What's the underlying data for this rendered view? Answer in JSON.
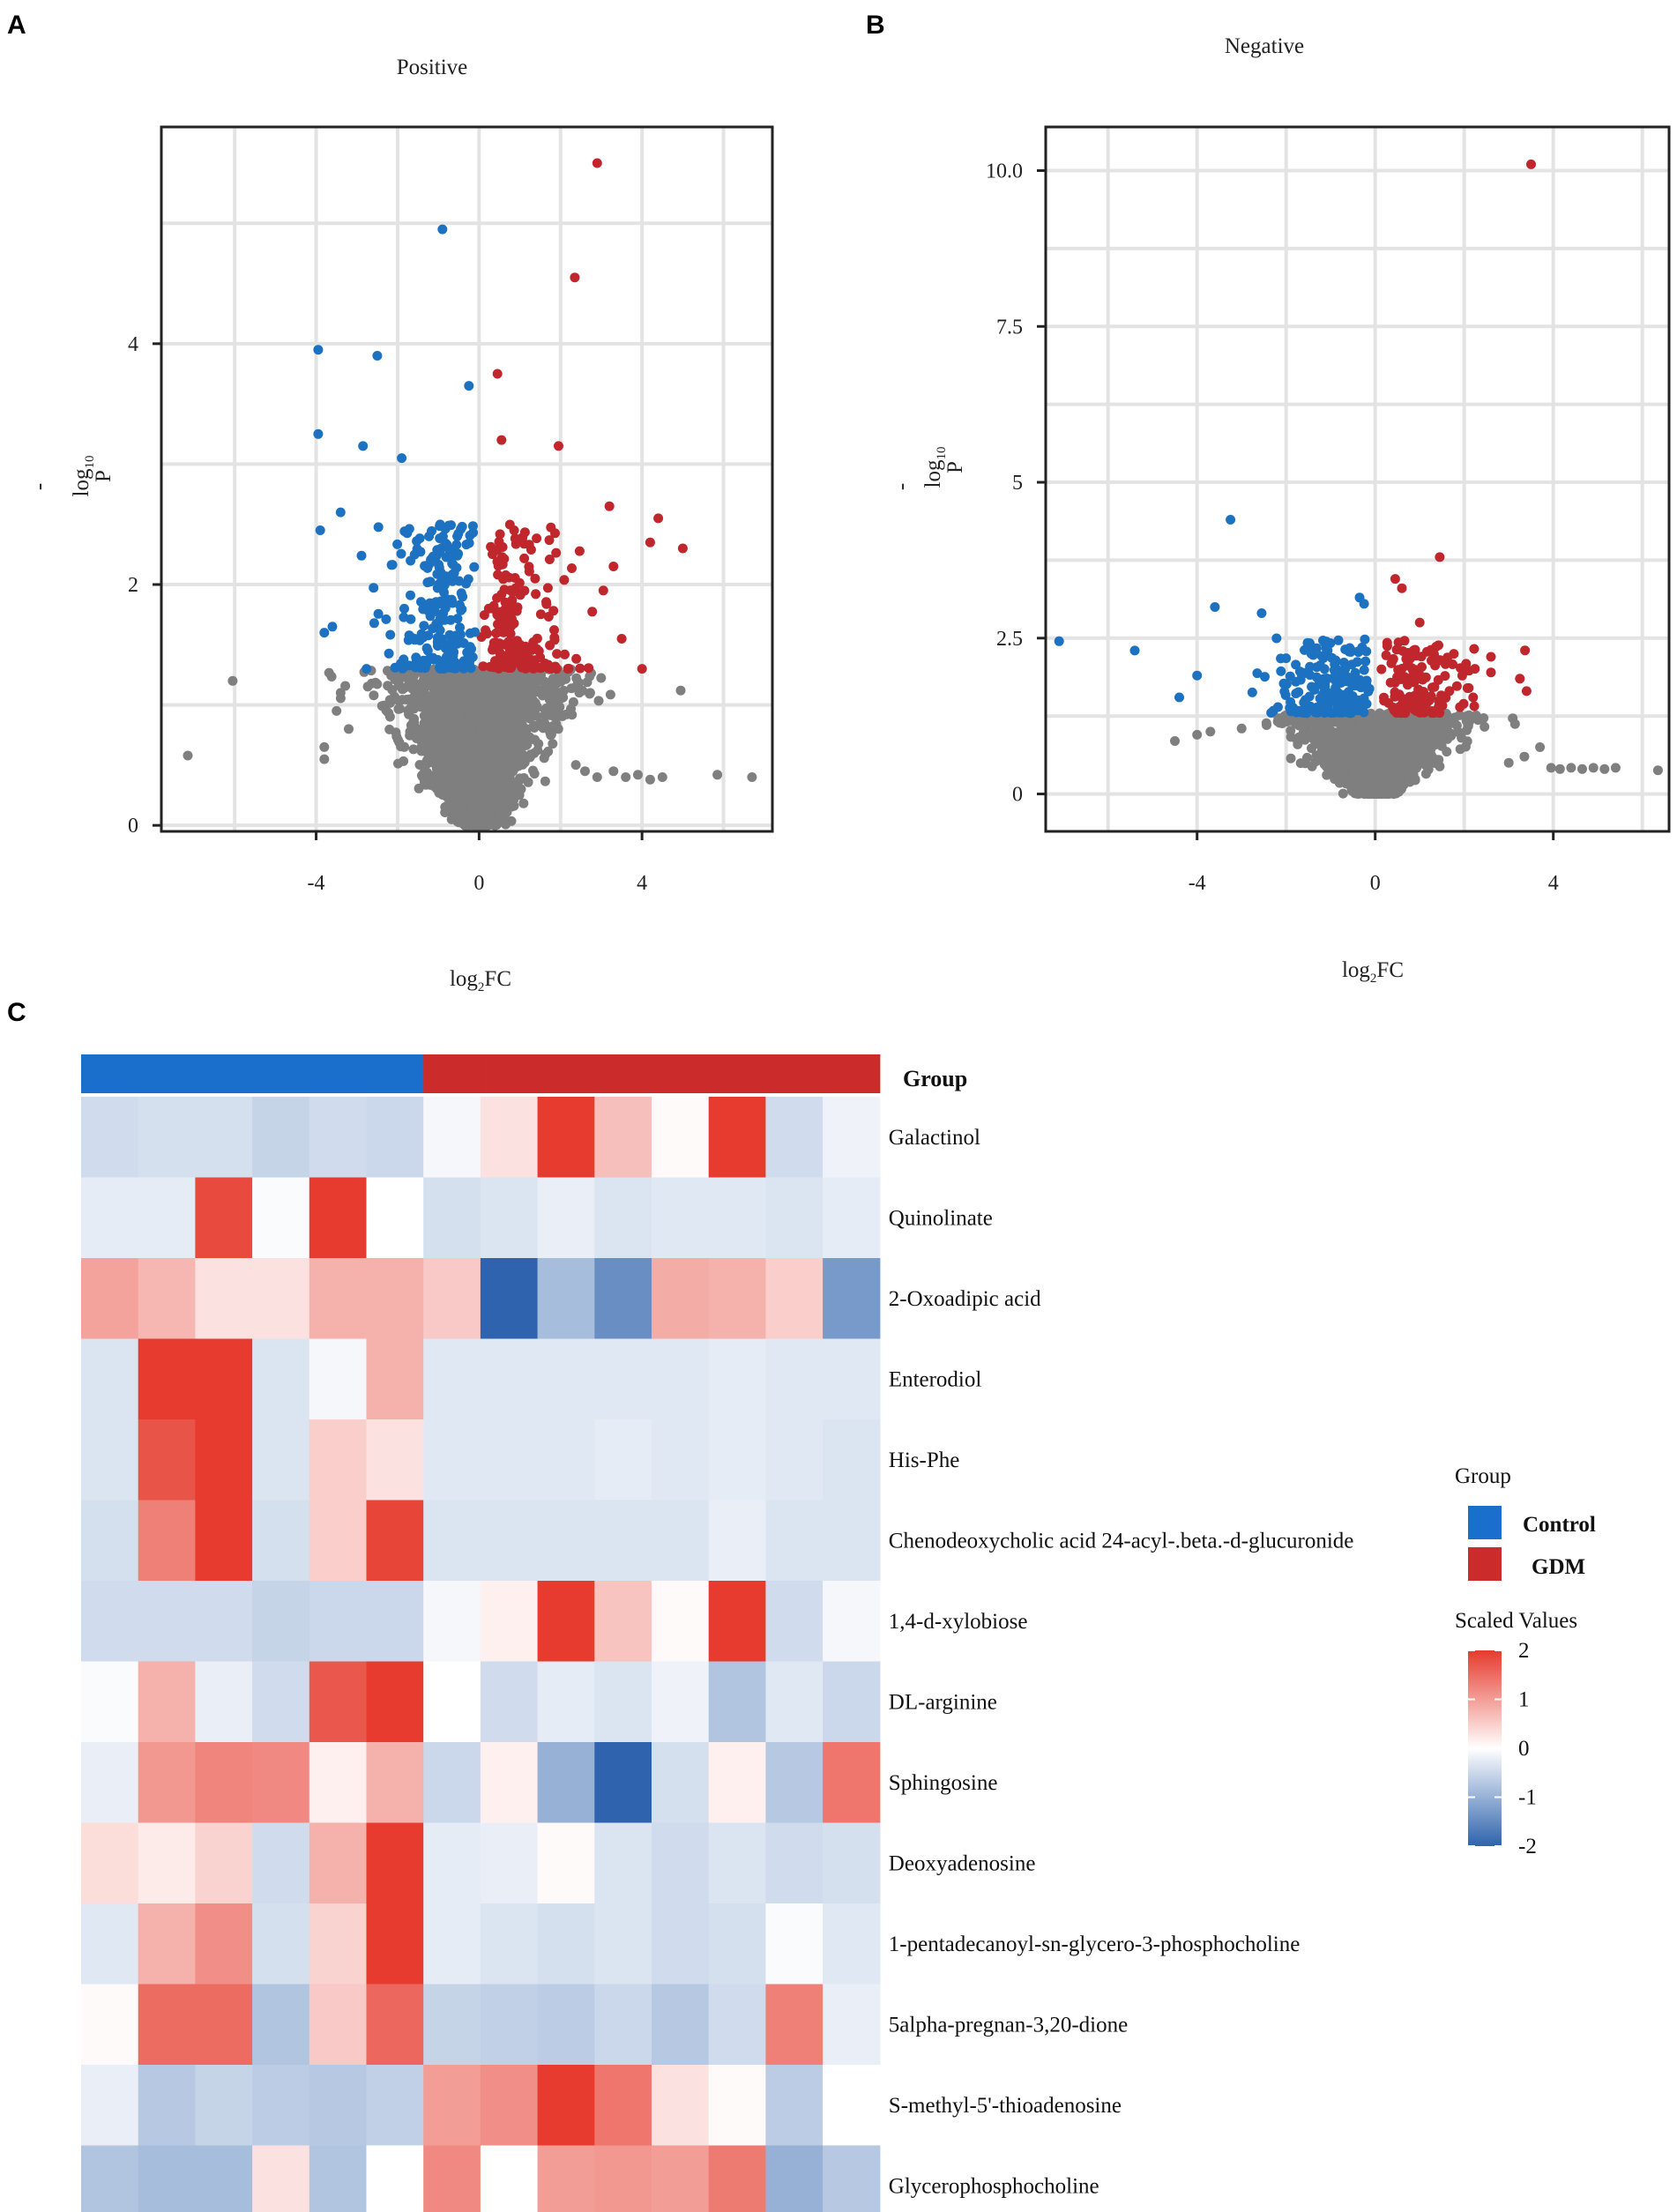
{
  "panels": {
    "a": {
      "letter": "A"
    },
    "b": {
      "letter": "B"
    },
    "c": {
      "letter": "C"
    }
  },
  "colors": {
    "up": "#c0272d",
    "down": "#1c72c0",
    "ns": "#7f7f7f",
    "control": "#1b6fcc",
    "gdm": "#cb2b2b",
    "grid": "#e3e3e3",
    "frame": "#222222"
  },
  "chart_data": [
    {
      "type": "scatter",
      "id": "volcano_positive",
      "title": "Positive",
      "xlabel": {
        "prefix": "log",
        "sub": "2",
        "suffix": "FC"
      },
      "ylabel": {
        "prefix": "-",
        "main": "log",
        "sub": "10",
        "suffix": "P"
      },
      "xlim": [
        -7.8,
        7.2
      ],
      "ylim": [
        -0.05,
        5.8
      ],
      "x_ticks": [
        -4,
        0,
        4
      ],
      "x_tick_labels": [
        "-4",
        "0",
        "4"
      ],
      "x_grid": [
        -6,
        -4,
        -2,
        0,
        2,
        4,
        6
      ],
      "y_ticks": [
        0,
        2,
        4
      ],
      "y_tick_labels": [
        "0",
        "2",
        "4"
      ],
      "y_grid": [
        0,
        1,
        2,
        3,
        4,
        5
      ],
      "threshold_p": 1.3,
      "x_fan_spread": 0.55,
      "seed": 11,
      "cloud": {
        "up_n": 200,
        "down_n": 210,
        "ns_n": 2600
      },
      "points": [
        {
          "x": 2.9,
          "y": 5.5,
          "g": "up"
        },
        {
          "x": -0.9,
          "y": 4.95,
          "g": "down"
        },
        {
          "x": 2.35,
          "y": 4.55,
          "g": "up"
        },
        {
          "x": -3.95,
          "y": 3.95,
          "g": "down"
        },
        {
          "x": -2.5,
          "y": 3.9,
          "g": "down"
        },
        {
          "x": 0.45,
          "y": 3.75,
          "g": "up"
        },
        {
          "x": -0.25,
          "y": 3.65,
          "g": "down"
        },
        {
          "x": -3.95,
          "y": 3.25,
          "g": "down"
        },
        {
          "x": 0.55,
          "y": 3.2,
          "g": "up"
        },
        {
          "x": 1.95,
          "y": 3.15,
          "g": "up"
        },
        {
          "x": -2.85,
          "y": 3.15,
          "g": "down"
        },
        {
          "x": -1.9,
          "y": 3.05,
          "g": "down"
        },
        {
          "x": -3.4,
          "y": 2.6,
          "g": "down"
        },
        {
          "x": -3.9,
          "y": 2.45,
          "g": "down"
        },
        {
          "x": 4.4,
          "y": 2.55,
          "g": "up"
        },
        {
          "x": 3.2,
          "y": 2.65,
          "g": "up"
        },
        {
          "x": 4.2,
          "y": 2.35,
          "g": "up"
        },
        {
          "x": 5.0,
          "y": 2.3,
          "g": "up"
        },
        {
          "x": 3.3,
          "y": 2.15,
          "g": "up"
        },
        {
          "x": 3.05,
          "y": 1.95,
          "g": "up"
        },
        {
          "x": 3.5,
          "y": 1.55,
          "g": "up"
        },
        {
          "x": 4.0,
          "y": 1.3,
          "g": "up"
        },
        {
          "x": -3.8,
          "y": 1.6,
          "g": "down"
        },
        {
          "x": -3.6,
          "y": 1.65,
          "g": "down"
        },
        {
          "x": -7.15,
          "y": 0.58,
          "g": "ns"
        },
        {
          "x": -6.05,
          "y": 1.2,
          "g": "ns"
        },
        {
          "x": 4.95,
          "y": 1.12,
          "g": "ns"
        },
        {
          "x": 5.85,
          "y": 0.42,
          "g": "ns"
        },
        {
          "x": 6.7,
          "y": 0.4,
          "g": "ns"
        },
        {
          "x": 3.3,
          "y": 0.45,
          "g": "ns"
        },
        {
          "x": 3.6,
          "y": 0.4,
          "g": "ns"
        },
        {
          "x": 3.9,
          "y": 0.42,
          "g": "ns"
        },
        {
          "x": 4.2,
          "y": 0.38,
          "g": "ns"
        },
        {
          "x": 4.5,
          "y": 0.4,
          "g": "ns"
        },
        {
          "x": 2.9,
          "y": 0.4,
          "g": "ns"
        },
        {
          "x": 2.6,
          "y": 0.45,
          "g": "ns"
        },
        {
          "x": -3.8,
          "y": 0.55,
          "g": "ns"
        },
        {
          "x": -3.8,
          "y": 0.65,
          "g": "ns"
        },
        {
          "x": -3.4,
          "y": 1.1,
          "g": "ns"
        },
        {
          "x": -3.5,
          "y": 0.95,
          "g": "ns"
        },
        {
          "x": -3.2,
          "y": 0.8,
          "g": "ns"
        }
      ]
    },
    {
      "type": "scatter",
      "id": "volcano_negative",
      "title": "Negative",
      "xlabel": {
        "prefix": "log",
        "sub": "2",
        "suffix": "FC"
      },
      "ylabel": {
        "prefix": "-",
        "main": "log",
        "sub": "10",
        "suffix": "P"
      },
      "xlim": [
        -7.4,
        6.6
      ],
      "ylim": [
        -0.6,
        10.7
      ],
      "x_ticks": [
        -4,
        0,
        4
      ],
      "x_tick_labels": [
        "-4",
        "0",
        "4"
      ],
      "x_grid": [
        -6,
        -4,
        -2,
        0,
        2,
        4,
        6
      ],
      "y_ticks": [
        0,
        2.5,
        5,
        7.5,
        10
      ],
      "y_tick_labels": [
        "0",
        "2.5",
        "5",
        "7.5",
        "10.0"
      ],
      "y_grid": [
        0,
        1.25,
        2.5,
        3.75,
        5,
        6.25,
        7.5,
        8.75,
        10
      ],
      "threshold_p": 1.3,
      "x_fan_spread": 0.42,
      "seed": 29,
      "cloud": {
        "up_n": 140,
        "down_n": 190,
        "ns_n": 2400
      },
      "points": [
        {
          "x": 3.5,
          "y": 10.1,
          "g": "up"
        },
        {
          "x": -3.25,
          "y": 4.4,
          "g": "down"
        },
        {
          "x": 1.45,
          "y": 3.8,
          "g": "up"
        },
        {
          "x": 0.45,
          "y": 3.45,
          "g": "up"
        },
        {
          "x": 0.6,
          "y": 3.3,
          "g": "up"
        },
        {
          "x": -0.35,
          "y": 3.15,
          "g": "down"
        },
        {
          "x": -0.25,
          "y": 3.05,
          "g": "down"
        },
        {
          "x": -3.6,
          "y": 3.0,
          "g": "down"
        },
        {
          "x": -2.55,
          "y": 2.9,
          "g": "down"
        },
        {
          "x": 1.0,
          "y": 2.75,
          "g": "up"
        },
        {
          "x": -7.1,
          "y": 2.45,
          "g": "down"
        },
        {
          "x": -5.4,
          "y": 2.3,
          "g": "down"
        },
        {
          "x": -4.0,
          "y": 1.9,
          "g": "down"
        },
        {
          "x": -4.4,
          "y": 1.55,
          "g": "down"
        },
        {
          "x": 2.6,
          "y": 2.2,
          "g": "up"
        },
        {
          "x": 2.6,
          "y": 1.95,
          "g": "up"
        },
        {
          "x": 3.25,
          "y": 1.85,
          "g": "up"
        },
        {
          "x": 3.4,
          "y": 1.65,
          "g": "up"
        },
        {
          "x": 2.1,
          "y": 1.7,
          "g": "up"
        },
        {
          "x": 2.2,
          "y": 1.55,
          "g": "up"
        },
        {
          "x": 6.35,
          "y": 0.38,
          "g": "ns"
        },
        {
          "x": 5.4,
          "y": 0.42,
          "g": "ns"
        },
        {
          "x": 5.15,
          "y": 0.4,
          "g": "ns"
        },
        {
          "x": 4.9,
          "y": 0.42,
          "g": "ns"
        },
        {
          "x": 4.65,
          "y": 0.4,
          "g": "ns"
        },
        {
          "x": 4.4,
          "y": 0.42,
          "g": "ns"
        },
        {
          "x": 4.15,
          "y": 0.4,
          "g": "ns"
        },
        {
          "x": 3.95,
          "y": 0.42,
          "g": "ns"
        },
        {
          "x": 3.7,
          "y": 0.75,
          "g": "ns"
        },
        {
          "x": 3.35,
          "y": 0.6,
          "g": "ns"
        },
        {
          "x": 3.0,
          "y": 0.5,
          "g": "ns"
        },
        {
          "x": -4.5,
          "y": 0.85,
          "g": "ns"
        },
        {
          "x": -4.0,
          "y": 0.95,
          "g": "ns"
        },
        {
          "x": -3.7,
          "y": 1.0,
          "g": "ns"
        },
        {
          "x": -3.0,
          "y": 1.05,
          "g": "ns"
        }
      ]
    },
    {
      "type": "heatmap",
      "id": "metabolite_heatmap",
      "group_header": "Group",
      "columns": 14,
      "column_groups": [
        "Control",
        "Control",
        "Control",
        "Control",
        "Control",
        "Control",
        "GDM",
        "GDM",
        "GDM",
        "GDM",
        "GDM",
        "GDM",
        "GDM",
        "GDM"
      ],
      "rows": [
        "Galactinol",
        "Quinolinate",
        "2-Oxoadipic acid",
        "Enterodiol",
        "His-Phe",
        "Chenodeoxycholic acid 24-acyl-.beta.-d-glucuronide",
        "1,4-d-xylobiose",
        "DL-arginine",
        "Sphingosine",
        "Deoxyadenosine",
        "1-pentadecanoyl-sn-glycero-3-phosphocholine",
        "5alpha-pregnan-3,20-dione",
        "S-methyl-5'-thioadenosine",
        "Glycerophosphocholine"
      ],
      "values": [
        [
          -0.45,
          -0.4,
          -0.4,
          -0.55,
          -0.45,
          -0.5,
          -0.1,
          0.3,
          2.0,
          0.65,
          0.05,
          2.0,
          -0.45,
          -0.15
        ],
        [
          -0.25,
          -0.25,
          1.85,
          -0.05,
          2.0,
          0.0,
          -0.4,
          -0.35,
          -0.2,
          -0.35,
          -0.3,
          -0.3,
          -0.35,
          -0.25
        ],
        [
          0.95,
          0.75,
          0.3,
          0.3,
          0.8,
          0.8,
          0.55,
          -2.0,
          -0.85,
          -1.45,
          0.85,
          0.8,
          0.5,
          -1.3
        ],
        [
          -0.35,
          2.0,
          2.0,
          -0.35,
          -0.1,
          0.8,
          -0.3,
          -0.3,
          -0.3,
          -0.3,
          -0.3,
          -0.25,
          -0.3,
          -0.3
        ],
        [
          -0.35,
          1.75,
          2.0,
          -0.35,
          0.5,
          0.3,
          -0.3,
          -0.3,
          -0.3,
          -0.25,
          -0.3,
          -0.25,
          -0.3,
          -0.35
        ],
        [
          -0.4,
          1.3,
          2.0,
          -0.4,
          0.5,
          1.9,
          -0.35,
          -0.35,
          -0.35,
          -0.35,
          -0.35,
          -0.2,
          -0.35,
          -0.35
        ],
        [
          -0.45,
          -0.45,
          -0.45,
          -0.55,
          -0.5,
          -0.5,
          -0.1,
          0.15,
          2.0,
          0.6,
          0.05,
          2.0,
          -0.45,
          -0.1
        ],
        [
          -0.05,
          0.8,
          -0.2,
          -0.45,
          1.7,
          2.0,
          0.0,
          -0.45,
          -0.25,
          -0.35,
          -0.15,
          -0.75,
          -0.3,
          -0.5
        ],
        [
          -0.2,
          1.05,
          1.25,
          1.2,
          0.15,
          0.8,
          -0.5,
          0.15,
          -1.0,
          -2.0,
          -0.4,
          0.15,
          -0.7,
          1.4
        ],
        [
          0.35,
          0.2,
          0.45,
          -0.45,
          0.8,
          2.0,
          -0.25,
          -0.2,
          0.05,
          -0.35,
          -0.45,
          -0.35,
          -0.45,
          -0.4
        ],
        [
          -0.3,
          0.8,
          1.15,
          -0.4,
          0.45,
          2.0,
          -0.25,
          -0.35,
          -0.4,
          -0.35,
          -0.45,
          -0.4,
          -0.05,
          -0.3
        ],
        [
          0.05,
          1.5,
          1.5,
          -0.75,
          0.55,
          1.55,
          -0.55,
          -0.6,
          -0.65,
          -0.5,
          -0.7,
          -0.45,
          1.3,
          -0.2
        ],
        [
          -0.2,
          -0.7,
          -0.55,
          -0.65,
          -0.7,
          -0.6,
          1.0,
          1.15,
          2.0,
          1.4,
          0.3,
          0.05,
          -0.65,
          0.0
        ],
        [
          -0.75,
          -0.85,
          -0.85,
          0.3,
          -0.75,
          0.0,
          1.2,
          0.0,
          1.0,
          1.05,
          1.0,
          1.35,
          -1.0,
          -0.7
        ]
      ],
      "color_scale": {
        "min": -2,
        "max": 2,
        "low": "#2f63ad",
        "mid": "#ffffff",
        "high": "#e63b2e"
      },
      "legend": {
        "group_title": "Group",
        "groups": [
          {
            "name": "Control",
            "color": "#1b6fcc"
          },
          {
            "name": "GDM",
            "color": "#cb2b2b"
          }
        ],
        "scale_title": "Scaled Values",
        "scale_labels": [
          "2",
          "1",
          "0",
          "-1",
          "-2"
        ],
        "scale_values": [
          2,
          1,
          0,
          -1,
          -2
        ]
      }
    }
  ]
}
